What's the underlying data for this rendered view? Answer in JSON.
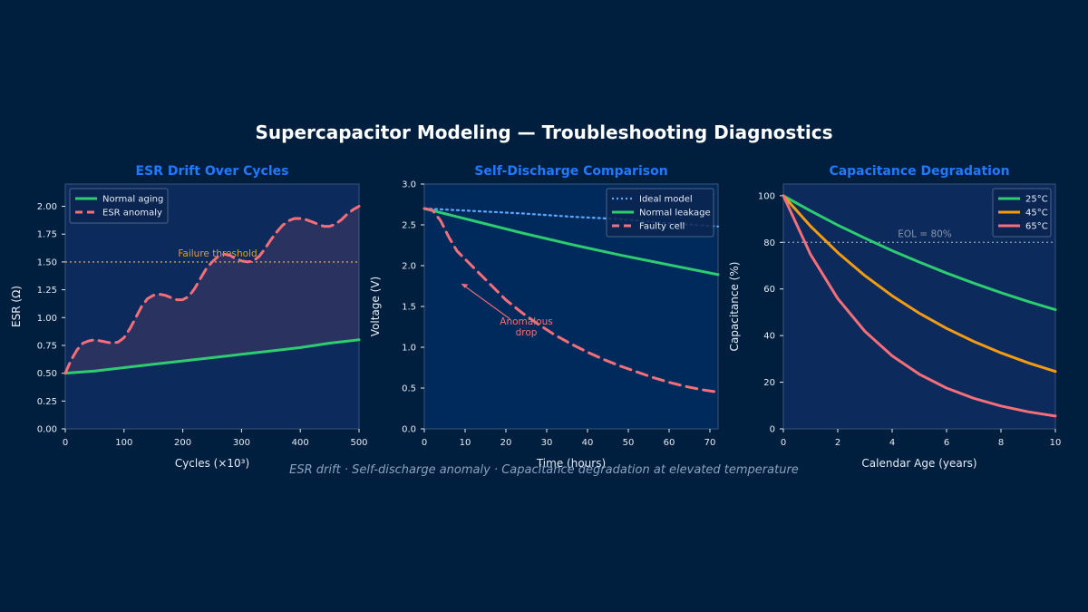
{
  "suptitle": "Supercapacitor Modeling — Troubleshooting Diagnostics",
  "caption": "ESR drift · Self-discharge anomaly · Capacitance degradation at elevated temperature",
  "colors": {
    "background": "#001f3f",
    "panel": "#002a5c",
    "title": "#1f7aff",
    "green": "#2ecc71",
    "red": "#f56f7a",
    "blue": "#5aa9ff",
    "orange": "#f39c12",
    "threshold": "#e0a030",
    "eol": "#8a95a8"
  },
  "chart_data": [
    {
      "type": "line",
      "title": "ESR Drift Over Cycles",
      "xlabel": "Cycles (×10³)",
      "ylabel": "ESR (Ω)",
      "xlim": [
        0,
        500
      ],
      "ylim": [
        0,
        2.2
      ],
      "xticks": [
        "0",
        "100",
        "200",
        "300",
        "400",
        "500"
      ],
      "yticks": [
        "0.00",
        "0.25",
        "0.50",
        "0.75",
        "1.00",
        "1.25",
        "1.50",
        "1.75",
        "2.00"
      ],
      "legend_position": "upper-left",
      "series": [
        {
          "name": "Normal aging",
          "style": "solid",
          "color": "#2ecc71",
          "x": [
            0,
            50,
            100,
            150,
            200,
            250,
            300,
            350,
            400,
            450,
            500
          ],
          "y": [
            0.5,
            0.52,
            0.55,
            0.58,
            0.61,
            0.64,
            0.67,
            0.7,
            0.73,
            0.77,
            0.8
          ]
        },
        {
          "name": "ESR anomaly",
          "style": "dashed",
          "color": "#f56f7a",
          "fill_to": "Normal aging",
          "x": [
            0,
            10,
            20,
            30,
            40,
            50,
            60,
            70,
            80,
            90,
            100,
            110,
            120,
            130,
            140,
            150,
            160,
            170,
            180,
            190,
            200,
            210,
            220,
            230,
            240,
            250,
            260,
            270,
            280,
            290,
            300,
            310,
            320,
            330,
            340,
            350,
            360,
            370,
            380,
            390,
            400,
            410,
            420,
            430,
            440,
            450,
            460,
            470,
            480,
            490,
            500
          ],
          "y": [
            0.5,
            0.62,
            0.71,
            0.77,
            0.79,
            0.8,
            0.79,
            0.78,
            0.77,
            0.78,
            0.82,
            0.9,
            1.0,
            1.1,
            1.17,
            1.2,
            1.21,
            1.2,
            1.18,
            1.16,
            1.16,
            1.19,
            1.26,
            1.35,
            1.44,
            1.5,
            1.55,
            1.57,
            1.56,
            1.53,
            1.51,
            1.5,
            1.51,
            1.55,
            1.62,
            1.7,
            1.77,
            1.83,
            1.87,
            1.89,
            1.89,
            1.88,
            1.86,
            1.84,
            1.82,
            1.82,
            1.84,
            1.88,
            1.93,
            1.97,
            2.0
          ]
        }
      ],
      "hlines": [
        {
          "y": 1.5,
          "label": "Failure threshold",
          "color": "#e0a030",
          "style": "dotted"
        }
      ]
    },
    {
      "type": "line",
      "title": "Self-Discharge Comparison",
      "xlabel": "Time (hours)",
      "ylabel": "Voltage (V)",
      "xlim": [
        0,
        72
      ],
      "ylim": [
        0,
        3.0
      ],
      "xticks": [
        "0",
        "10",
        "20",
        "30",
        "40",
        "50",
        "60",
        "70"
      ],
      "yticks": [
        "0.0",
        "0.5",
        "1.0",
        "1.5",
        "2.0",
        "2.5",
        "3.0"
      ],
      "legend_position": "upper-right",
      "series": [
        {
          "name": "Ideal model",
          "style": "dotted",
          "color": "#5aa9ff",
          "x": [
            0,
            12,
            24,
            36,
            48,
            60,
            72
          ],
          "y": [
            2.7,
            2.67,
            2.64,
            2.6,
            2.57,
            2.52,
            2.48
          ]
        },
        {
          "name": "Normal leakage",
          "style": "solid",
          "color": "#2ecc71",
          "x": [
            0,
            12,
            24,
            36,
            48,
            60,
            72
          ],
          "y": [
            2.7,
            2.55,
            2.4,
            2.26,
            2.13,
            2.01,
            1.89
          ]
        },
        {
          "name": "Faulty cell",
          "style": "dashed",
          "color": "#f56f7a",
          "x": [
            0,
            2,
            4,
            6,
            8,
            10,
            12,
            16,
            20,
            24,
            28,
            32,
            36,
            40,
            44,
            48,
            52,
            56,
            60,
            64,
            68,
            72
          ],
          "y": [
            2.7,
            2.68,
            2.55,
            2.35,
            2.18,
            2.08,
            1.98,
            1.78,
            1.58,
            1.42,
            1.28,
            1.15,
            1.04,
            0.94,
            0.85,
            0.77,
            0.7,
            0.63,
            0.57,
            0.52,
            0.48,
            0.45
          ]
        }
      ],
      "annotations": [
        {
          "text": [
            "Anomalous",
            "drop"
          ],
          "color": "#f56f7a",
          "arrow_to": [
            9,
            1.78
          ],
          "text_at": [
            25,
            1.28
          ]
        }
      ]
    },
    {
      "type": "line",
      "title": "Capacitance Degradation",
      "xlabel": "Calendar Age (years)",
      "ylabel": "Capacitance (%)",
      "xlim": [
        0,
        10
      ],
      "ylim": [
        0,
        105
      ],
      "xticks": [
        "0",
        "2",
        "4",
        "6",
        "8",
        "10"
      ],
      "yticks": [
        "0",
        "20",
        "40",
        "60",
        "80",
        "100"
      ],
      "legend_position": "upper-right",
      "series": [
        {
          "name": "25°C",
          "style": "solid",
          "color": "#2ecc71",
          "x": [
            0,
            1,
            2,
            3,
            4,
            5,
            6,
            7,
            8,
            9,
            10
          ],
          "y": [
            100,
            93.5,
            87.4,
            81.8,
            76.4,
            71.5,
            66.8,
            62.5,
            58.4,
            54.6,
            51.1
          ]
        },
        {
          "name": "45°C",
          "style": "solid",
          "color": "#f39c12",
          "x": [
            0,
            1,
            2,
            3,
            4,
            5,
            6,
            7,
            8,
            9,
            10
          ],
          "y": [
            100,
            86.9,
            75.6,
            65.7,
            57.1,
            49.6,
            43.1,
            37.5,
            32.6,
            28.3,
            24.6
          ]
        },
        {
          "name": "65°C",
          "style": "solid",
          "color": "#f56f7a",
          "x": [
            0,
            1,
            2,
            3,
            4,
            5,
            6,
            7,
            8,
            9,
            10
          ],
          "y": [
            100,
            74.8,
            55.9,
            41.8,
            31.3,
            23.4,
            17.5,
            13.1,
            9.8,
            7.3,
            5.5
          ]
        }
      ],
      "hlines": [
        {
          "y": 80,
          "label": "EOL = 80%",
          "color": "#8a95a8",
          "style": "dotted"
        }
      ]
    }
  ]
}
